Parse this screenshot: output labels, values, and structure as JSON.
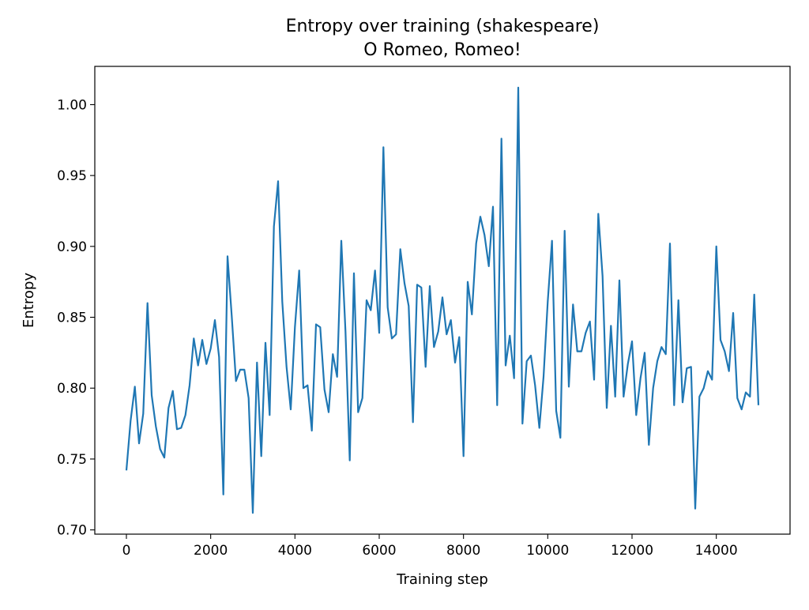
{
  "chart_data": {
    "type": "line",
    "title": "Entropy over training (shakespeare)",
    "subtitle": "O Romeo, Romeo!",
    "xlabel": "Training step",
    "ylabel": "Entropy",
    "xlim": [
      -750,
      15750
    ],
    "ylim": [
      0.697,
      1.027
    ],
    "x_ticks": [
      0,
      2000,
      4000,
      6000,
      8000,
      10000,
      12000,
      14000
    ],
    "x_tick_labels": [
      "0",
      "2000",
      "4000",
      "6000",
      "8000",
      "10000",
      "12000",
      "14000"
    ],
    "y_ticks": [
      0.7,
      0.75,
      0.8,
      0.85,
      0.9,
      0.95,
      1.0
    ],
    "y_tick_labels": [
      "0.70",
      "0.75",
      "0.80",
      "0.85",
      "0.90",
      "0.95",
      "1.00"
    ],
    "grid": false,
    "legend": "none",
    "line_color": "#1f77b4",
    "series": [
      {
        "x": [
          0,
          100,
          200,
          300,
          400,
          500,
          600,
          700,
          800,
          900,
          1000,
          1100,
          1200,
          1300,
          1400,
          1500,
          1600,
          1700,
          1800,
          1900,
          2000,
          2100,
          2200,
          2300,
          2400,
          2500,
          2600,
          2700,
          2800,
          2900,
          3000,
          3100,
          3200,
          3300,
          3400,
          3500,
          3600,
          3700,
          3800,
          3900,
          4000,
          4100,
          4200,
          4300,
          4400,
          4500,
          4600,
          4700,
          4800,
          4900,
          5000,
          5100,
          5200,
          5300,
          5400,
          5500,
          5600,
          5700,
          5800,
          5900,
          6000,
          6100,
          6200,
          6300,
          6400,
          6500,
          6600,
          6700,
          6800,
          6900,
          7000,
          7100,
          7200,
          7300,
          7400,
          7500,
          7600,
          7700,
          7800,
          7900,
          8000,
          8100,
          8200,
          8300,
          8400,
          8500,
          8600,
          8700,
          8800,
          8900,
          9000,
          9100,
          9200,
          9300,
          9400,
          9500,
          9600,
          9700,
          9800,
          9900,
          10000,
          10100,
          10200,
          10300,
          10400,
          10500,
          10600,
          10700,
          10800,
          10900,
          11000,
          11100,
          11200,
          11300,
          11400,
          11500,
          11600,
          11700,
          11800,
          11900,
          12000,
          12100,
          12200,
          12300,
          12400,
          12500,
          12600,
          12700,
          12800,
          12900,
          13000,
          13100,
          13200,
          13300,
          13400,
          13500,
          13600,
          13700,
          13800,
          13900,
          14000,
          14100,
          14200,
          14300,
          14400,
          14500,
          14600,
          14700,
          14800,
          14900,
          15000
        ],
        "y": [
          0.742,
          0.777,
          0.801,
          0.761,
          0.782,
          0.86,
          0.795,
          0.773,
          0.757,
          0.751,
          0.786,
          0.798,
          0.771,
          0.772,
          0.781,
          0.802,
          0.835,
          0.816,
          0.834,
          0.817,
          0.828,
          0.848,
          0.822,
          0.725,
          0.893,
          0.851,
          0.805,
          0.813,
          0.813,
          0.793,
          0.712,
          0.818,
          0.752,
          0.832,
          0.781,
          0.914,
          0.946,
          0.861,
          0.815,
          0.785,
          0.843,
          0.883,
          0.8,
          0.802,
          0.77,
          0.845,
          0.843,
          0.799,
          0.783,
          0.824,
          0.808,
          0.904,
          0.84,
          0.749,
          0.881,
          0.783,
          0.793,
          0.862,
          0.855,
          0.883,
          0.839,
          0.97,
          0.857,
          0.835,
          0.838,
          0.898,
          0.874,
          0.858,
          0.776,
          0.873,
          0.871,
          0.815,
          0.872,
          0.829,
          0.84,
          0.864,
          0.838,
          0.848,
          0.818,
          0.836,
          0.752,
          0.875,
          0.852,
          0.902,
          0.921,
          0.908,
          0.886,
          0.928,
          0.788,
          0.976,
          0.816,
          0.837,
          0.807,
          1.012,
          0.775,
          0.819,
          0.823,
          0.802,
          0.772,
          0.808,
          0.861,
          0.904,
          0.784,
          0.765,
          0.911,
          0.801,
          0.859,
          0.826,
          0.826,
          0.839,
          0.847,
          0.806,
          0.923,
          0.879,
          0.786,
          0.844,
          0.794,
          0.876,
          0.794,
          0.817,
          0.833,
          0.781,
          0.807,
          0.825,
          0.76,
          0.8,
          0.819,
          0.829,
          0.824,
          0.902,
          0.788,
          0.862,
          0.79,
          0.814,
          0.815,
          0.715,
          0.794,
          0.8,
          0.812,
          0.806,
          0.9,
          0.834,
          0.826,
          0.812,
          0.853,
          0.793,
          0.785,
          0.797,
          0.794,
          0.866,
          0.788
        ]
      }
    ]
  }
}
